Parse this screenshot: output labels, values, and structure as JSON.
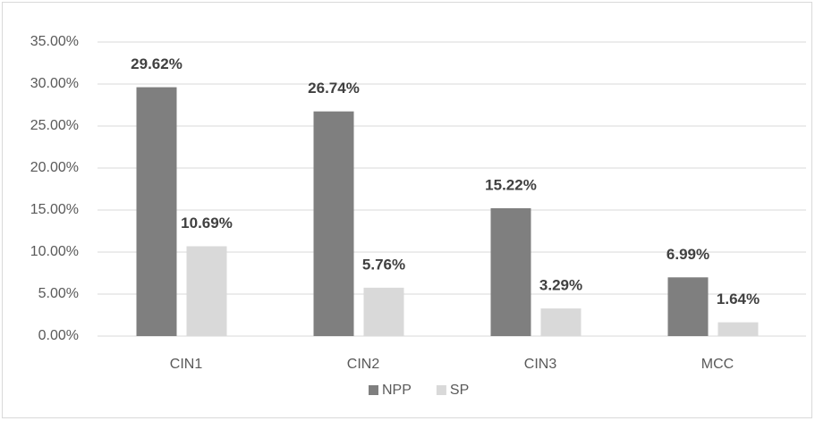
{
  "chart_data": {
    "type": "bar",
    "categories": [
      "CIN1",
      "CIN2",
      "CIN3",
      "MCC"
    ],
    "series": [
      {
        "name": "NPP",
        "color": "#7f7f7f",
        "values": [
          29.62,
          26.74,
          15.22,
          6.99
        ],
        "value_labels": [
          "29.62%",
          "26.74%",
          "15.22%",
          "6.99%"
        ]
      },
      {
        "name": "SP",
        "color": "#d9d9d9",
        "values": [
          10.69,
          5.76,
          3.29,
          1.64
        ],
        "value_labels": [
          "10.69%",
          "5.76%",
          "3.29%",
          "1.64%"
        ]
      }
    ],
    "ylim": [
      0,
      35
    ],
    "yticks": [
      {
        "value": 0,
        "label": "0.00%"
      },
      {
        "value": 5,
        "label": "5.00%"
      },
      {
        "value": 10,
        "label": "10.00%"
      },
      {
        "value": 15,
        "label": "15.00%"
      },
      {
        "value": 20,
        "label": "20.00%"
      },
      {
        "value": 25,
        "label": "25.00%"
      },
      {
        "value": 30,
        "label": "30.00%"
      },
      {
        "value": 35,
        "label": "35.00%"
      }
    ],
    "grid": true,
    "legend": "bottom"
  }
}
